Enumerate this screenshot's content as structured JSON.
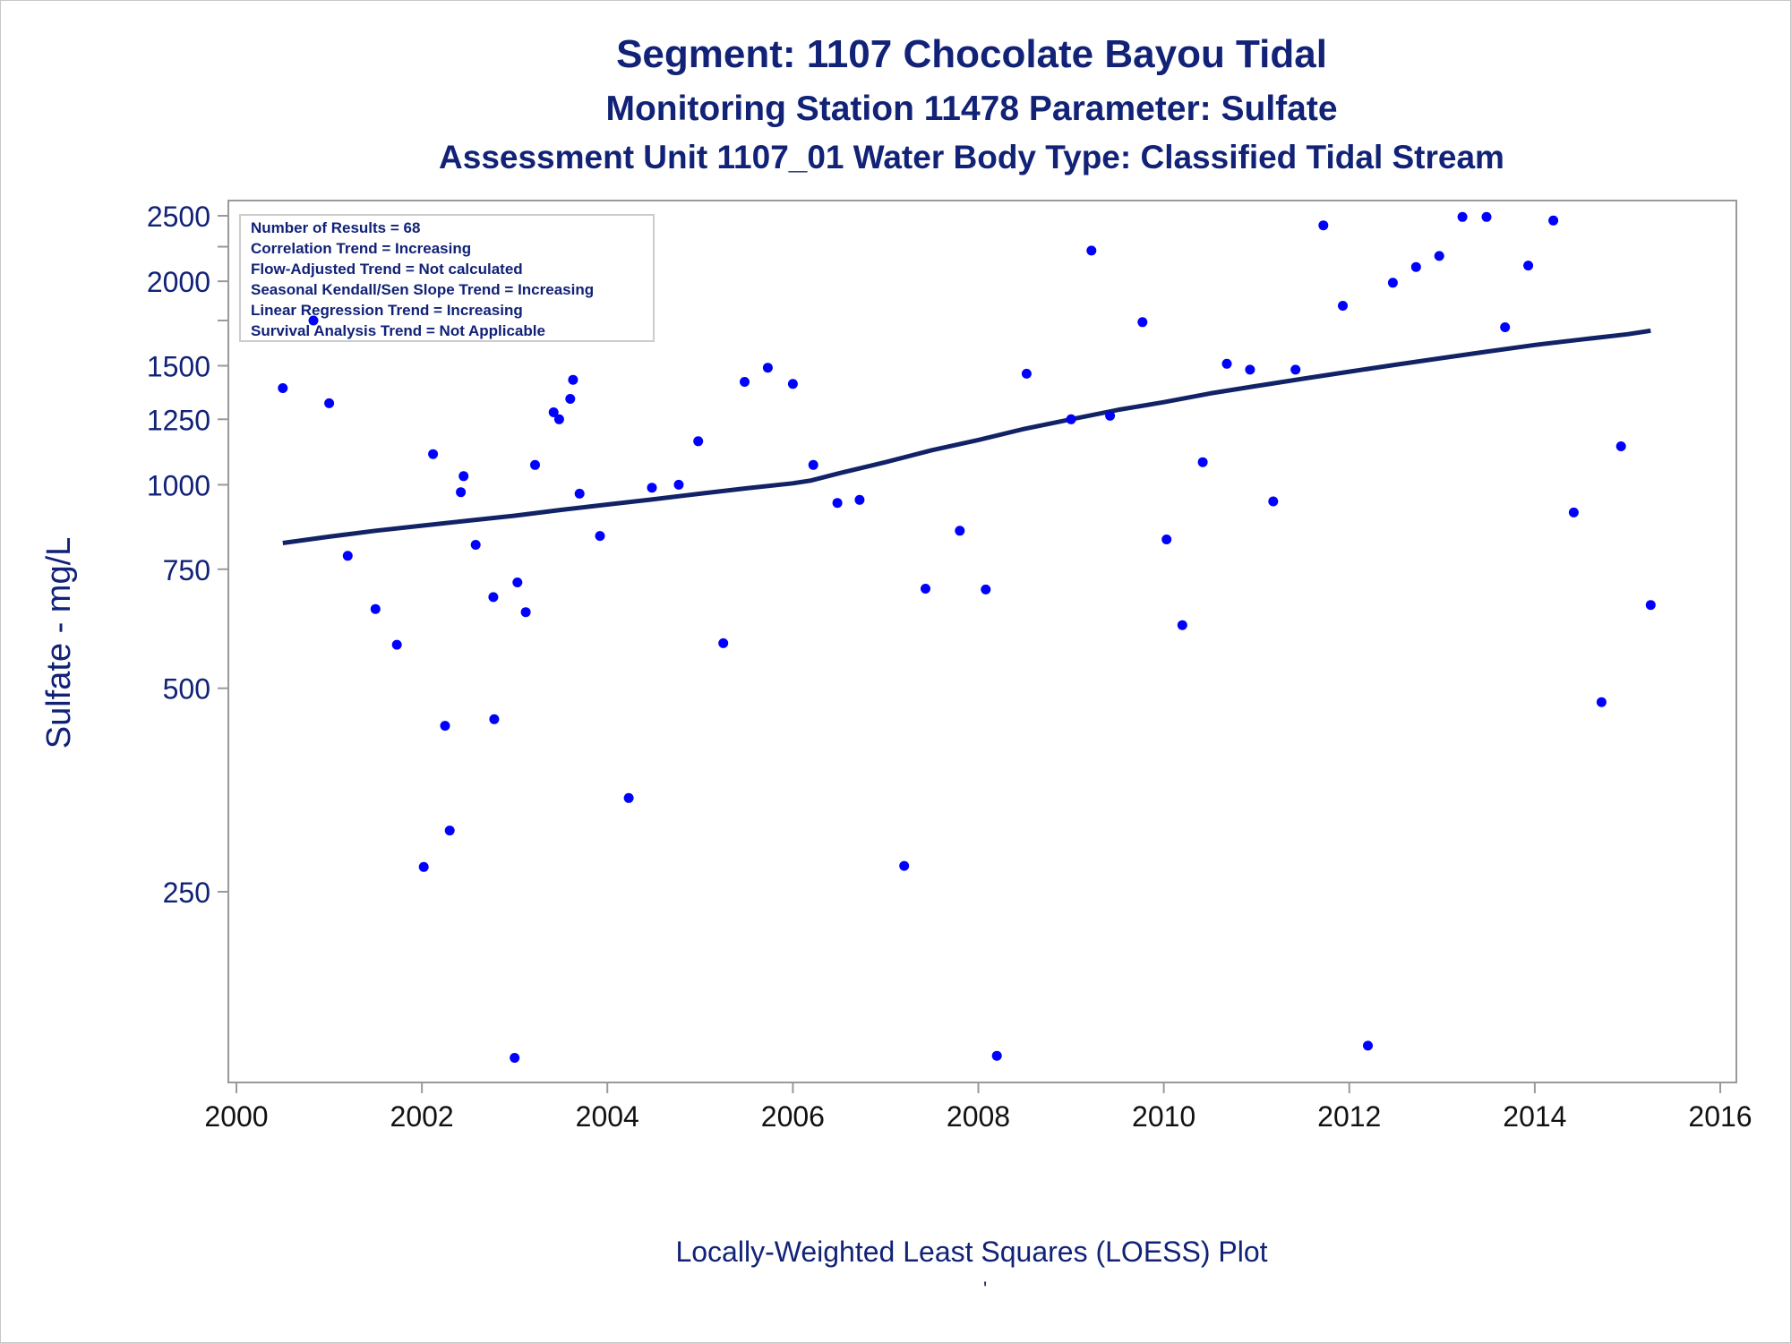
{
  "titles": {
    "line1": "Segment: 1107  Chocolate Bayou Tidal",
    "line2": "Monitoring Station 11478 Parameter: Sulfate",
    "line3": "Assessment Unit 1107_01   Water Body Type: Classified Tidal Stream"
  },
  "footnote": "Locally-Weighted Least Squares (LOESS) Plot",
  "footnote_mark": "'",
  "colors": {
    "text": "#112277",
    "points": "#0000ff",
    "loess": "#112266",
    "frame": "#999999"
  },
  "chart_data": {
    "type": "scatter",
    "ylabel": "Sulfate - mg/L",
    "xlabel": "",
    "xlim": [
      2000,
      2016
    ],
    "x_ticks": [
      "2000",
      "2002",
      "2004",
      "2006",
      "2008",
      "2010",
      "2012",
      "2014",
      "2016"
    ],
    "y_scale": "log",
    "y_ticks": [
      "250",
      "500",
      "750",
      "1000",
      "1250",
      "1500",
      "2000",
      "2500"
    ],
    "grid": false,
    "legend_placement": "top-left",
    "info_box": [
      "Number of Results = 68",
      "Correlation Trend = Increasing",
      "Flow-Adjusted Trend = Not calculated",
      "Seasonal Kendall/Sen Slope Trend = Increasing",
      "Linear Regression Trend = Increasing",
      "Survival Analysis Trend = Not Applicable"
    ],
    "series": [
      {
        "type": "scatter",
        "points": [
          [
            2000.5,
            1390
          ],
          [
            2000.83,
            1750
          ],
          [
            2001.0,
            1320
          ],
          [
            2001.2,
            785
          ],
          [
            2001.5,
            655
          ],
          [
            2001.73,
            580
          ],
          [
            2002.02,
            272
          ],
          [
            2002.12,
            1110
          ],
          [
            2002.25,
            440
          ],
          [
            2002.3,
            308
          ],
          [
            2002.42,
            975
          ],
          [
            2002.45,
            1030
          ],
          [
            2002.58,
            815
          ],
          [
            2002.77,
            682
          ],
          [
            2002.78,
            450
          ],
          [
            2003.0,
            142
          ],
          [
            2003.03,
            717
          ],
          [
            2003.12,
            648
          ],
          [
            2003.22,
            1070
          ],
          [
            2003.42,
            1280
          ],
          [
            2003.48,
            1250
          ],
          [
            2003.6,
            1340
          ],
          [
            2003.63,
            1430
          ],
          [
            2003.7,
            970
          ],
          [
            2003.92,
            840
          ],
          [
            2004.23,
            344
          ],
          [
            2004.48,
            990
          ],
          [
            2004.77,
            1000
          ],
          [
            2004.98,
            1160
          ],
          [
            2005.25,
            583
          ],
          [
            2005.48,
            1420
          ],
          [
            2005.73,
            1490
          ],
          [
            2006.0,
            1410
          ],
          [
            2006.22,
            1070
          ],
          [
            2006.48,
            940
          ],
          [
            2006.72,
            950
          ],
          [
            2007.2,
            273
          ],
          [
            2007.43,
            702
          ],
          [
            2007.8,
            855
          ],
          [
            2008.08,
            700
          ],
          [
            2008.2,
            143
          ],
          [
            2008.52,
            1460
          ],
          [
            2009.0,
            1250
          ],
          [
            2009.22,
            2220
          ],
          [
            2009.42,
            1265
          ],
          [
            2009.77,
            1740
          ],
          [
            2010.03,
            830
          ],
          [
            2010.2,
            620
          ],
          [
            2010.42,
            1080
          ],
          [
            2010.68,
            1510
          ],
          [
            2010.93,
            1480
          ],
          [
            2011.18,
            945
          ],
          [
            2011.42,
            1480
          ],
          [
            2011.72,
            2420
          ],
          [
            2011.93,
            1840
          ],
          [
            2012.2,
            148
          ],
          [
            2012.47,
            1990
          ],
          [
            2012.72,
            2100
          ],
          [
            2012.97,
            2180
          ],
          [
            2013.22,
            2490
          ],
          [
            2013.48,
            2490
          ],
          [
            2013.68,
            1710
          ],
          [
            2013.93,
            2110
          ],
          [
            2014.2,
            2460
          ],
          [
            2014.42,
            910
          ],
          [
            2014.72,
            477
          ],
          [
            2014.93,
            1140
          ],
          [
            2015.25,
            664
          ]
        ]
      },
      {
        "type": "line",
        "points": [
          [
            2000.5,
            820
          ],
          [
            2001.0,
            838
          ],
          [
            2001.5,
            855
          ],
          [
            2002.0,
            870
          ],
          [
            2002.5,
            885
          ],
          [
            2003.0,
            900
          ],
          [
            2003.5,
            918
          ],
          [
            2004.0,
            935
          ],
          [
            2004.5,
            952
          ],
          [
            2005.0,
            970
          ],
          [
            2005.5,
            988
          ],
          [
            2006.0,
            1005
          ],
          [
            2006.2,
            1015
          ],
          [
            2006.5,
            1040
          ],
          [
            2007.0,
            1080
          ],
          [
            2007.5,
            1125
          ],
          [
            2008.0,
            1165
          ],
          [
            2008.5,
            1210
          ],
          [
            2009.0,
            1250
          ],
          [
            2009.5,
            1290
          ],
          [
            2010.0,
            1325
          ],
          [
            2010.5,
            1365
          ],
          [
            2011.0,
            1400
          ],
          [
            2011.5,
            1435
          ],
          [
            2012.0,
            1470
          ],
          [
            2012.5,
            1505
          ],
          [
            2013.0,
            1540
          ],
          [
            2013.5,
            1575
          ],
          [
            2014.0,
            1610
          ],
          [
            2014.5,
            1640
          ],
          [
            2015.0,
            1670
          ],
          [
            2015.25,
            1690
          ]
        ]
      }
    ]
  }
}
